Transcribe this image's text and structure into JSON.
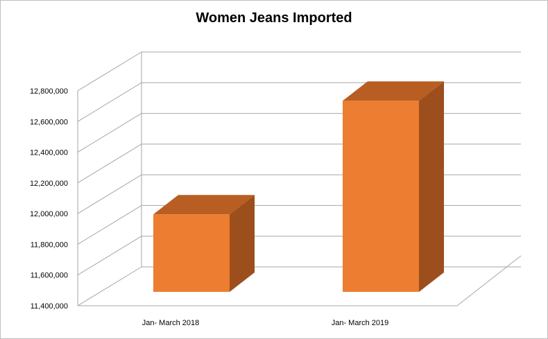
{
  "chart_data": {
    "type": "bar",
    "title": "Women Jeans Imported",
    "categories": [
      "Jan- March 2018",
      "Jan- March 2019"
    ],
    "values": [
      11995000,
      12735000
    ],
    "ylim": [
      11400000,
      12800000
    ],
    "yticks": [
      11400000,
      11600000,
      11800000,
      12000000,
      12200000,
      12400000,
      12600000,
      12800000
    ],
    "grid": true,
    "legend": "none",
    "colors": {
      "front": "#ED7D31",
      "top": "#B85E22",
      "side": "#9C4F1C",
      "grid": "#a6a6a6"
    }
  }
}
